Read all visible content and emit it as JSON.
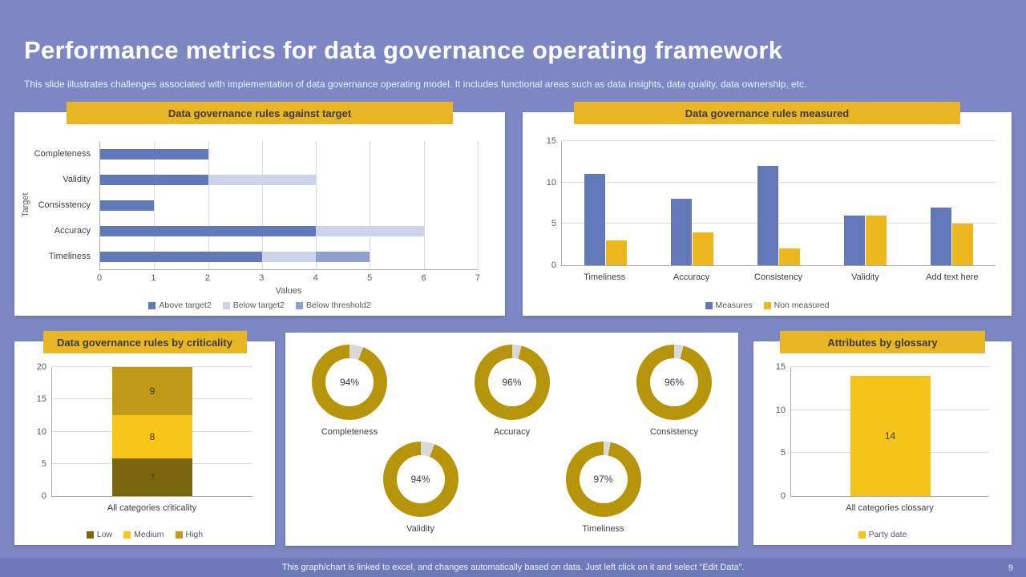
{
  "slide": {
    "title": "Performance metrics for data governance operating framework",
    "subtitle": "This slide illustrates challenges associated with implementation of data governance operating model. It includes functional areas such as data insights, data quality, data ownership, etc.",
    "footer": "This graph/chart is linked to excel, and changes automatically based on data. Just left click on it and select “Edit Data”.",
    "page_number": "9"
  },
  "colors": {
    "background": "#7d87c3",
    "banner": "#e8b524",
    "blue": "#6278b8",
    "light_blue": "#ccd4e9",
    "mid_blue": "#8fa0cf",
    "yellow": "#edb71f",
    "bright_yellow": "#f5c41a",
    "donut_gold": "#b7950b",
    "donut_gap": "#d9d9d9"
  },
  "chart_data": [
    {
      "id": "against-target",
      "type": "bar",
      "orientation": "horizontal-stacked",
      "title": "Data governance rules against target",
      "categories": [
        "Completeness",
        "Validity",
        "Consisstency",
        "Accuracy",
        "Timeliness"
      ],
      "series": [
        {
          "name": "Above target2",
          "color": "#6278b8",
          "values": [
            2,
            2,
            1,
            4,
            3
          ]
        },
        {
          "name": "Below target2",
          "color": "#ccd4e9",
          "values": [
            0,
            2,
            0,
            2,
            1
          ]
        },
        {
          "name": "Below threshold2",
          "color": "#8fa0cf",
          "values": [
            0,
            0,
            0,
            0,
            1
          ]
        }
      ],
      "xlabel": "Values",
      "ylabel": "Target",
      "xlim": [
        0,
        7
      ],
      "xticks": [
        0,
        1,
        2,
        3,
        4,
        5,
        6,
        7
      ],
      "grid": true,
      "legend_position": "bottom"
    },
    {
      "id": "rules-measured",
      "type": "bar",
      "orientation": "vertical-grouped",
      "title": "Data governance rules measured",
      "categories": [
        "Timeliness",
        "Accuracy",
        "Consistency",
        "Validity",
        "Add text here"
      ],
      "series": [
        {
          "name": "Measures",
          "color": "#6278b8",
          "values": [
            11,
            8,
            12,
            6,
            7
          ]
        },
        {
          "name": "Non measured",
          "color": "#edb71f",
          "values": [
            3,
            4,
            2,
            6,
            5
          ]
        }
      ],
      "ylim": [
        0,
        15
      ],
      "yticks": [
        0,
        5,
        10,
        15
      ],
      "grid": true,
      "legend_position": "bottom"
    },
    {
      "id": "by-criticality",
      "type": "bar",
      "orientation": "vertical-stacked",
      "title": "Data governance rules by criticality",
      "categories": [
        "All categories criticality"
      ],
      "series": [
        {
          "name": "Low",
          "color": "#7a660c",
          "values": [
            7
          ]
        },
        {
          "name": "Medium",
          "color": "#f7c619",
          "values": [
            8
          ]
        },
        {
          "name": "High",
          "color": "#c09a16",
          "values": [
            9
          ]
        }
      ],
      "ylim": [
        0,
        20
      ],
      "yticks": [
        0,
        5,
        10,
        15,
        20
      ],
      "grid": true,
      "show_values": true,
      "legend_position": "bottom"
    },
    {
      "id": "quality-donuts",
      "type": "pie",
      "subtype": "donut-set",
      "color": "#b7950b",
      "gap_color": "#d9d9d9",
      "items": [
        {
          "label": "Completeness",
          "value": 94,
          "display": "94%"
        },
        {
          "label": "Accuracy",
          "value": 96,
          "display": "96%"
        },
        {
          "label": "Consistency",
          "value": 96,
          "display": "96%"
        },
        {
          "label": "Validity",
          "value": 94,
          "display": "94%"
        },
        {
          "label": "Timeliness",
          "value": 97,
          "display": "97%"
        }
      ]
    },
    {
      "id": "attributes-glossary",
      "type": "bar",
      "orientation": "vertical",
      "title": "Attributes by glossary",
      "categories": [
        "All categories clossary"
      ],
      "series": [
        {
          "name": "Party date",
          "color": "#f5c41a",
          "values": [
            14
          ]
        }
      ],
      "ylim": [
        0,
        15
      ],
      "yticks": [
        0,
        5,
        10,
        15
      ],
      "grid": true,
      "show_values": true,
      "legend_position": "bottom"
    }
  ]
}
